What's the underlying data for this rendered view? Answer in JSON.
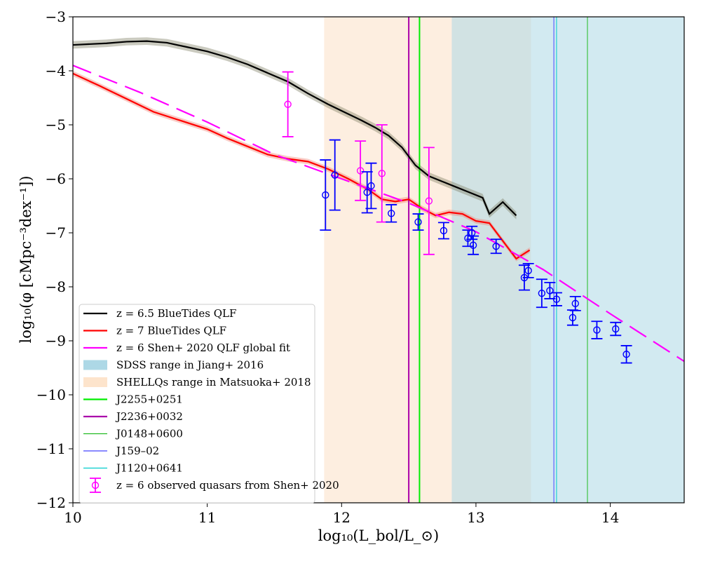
{
  "chart_data": {
    "type": "line",
    "xlabel": "log₁₀(L_bol/L_⊙)",
    "ylabel": "log₁₀(φ [cMpc⁻³dex⁻¹])",
    "xlim": [
      10,
      14.55
    ],
    "ylim": [
      -12,
      -3
    ],
    "xticks": [
      10,
      11,
      12,
      13,
      14
    ],
    "yticks": [
      -12,
      -11,
      -10,
      -9,
      -8,
      -7,
      -6,
      -5,
      -4,
      -3
    ],
    "legend_location": "lower-left",
    "shaded_regions": [
      {
        "name": "SHELLQs range in Matsuoka+ 2018",
        "x_start": 11.87,
        "x_end": 13.41,
        "color": "#f8cfa6",
        "opacity": 0.35
      },
      {
        "name": "SDSS range in Jiang+ 2016",
        "x_start": 12.82,
        "x_end": 14.55,
        "color": "#add8e6",
        "opacity": 0.55
      }
    ],
    "vertical_lines": [
      {
        "name": "J2255+0251",
        "x": 12.58,
        "color": "#00ee00",
        "width": 2
      },
      {
        "name": "J2236+0032",
        "x": 12.5,
        "color": "#aa00aa",
        "width": 2
      },
      {
        "name": "J0148+0600",
        "x": 13.83,
        "color": "#22bb22",
        "width": 1
      },
      {
        "name": "J159–02",
        "x": 13.58,
        "color": "#4444ff",
        "width": 1
      },
      {
        "name": "J1120+0641",
        "x": 13.6,
        "color": "#00cccc",
        "width": 1
      }
    ],
    "series": [
      {
        "name": "z = 6.5 BlueTides QLF",
        "color": "#000000",
        "band_color": "#7a7a60",
        "x": [
          10.0,
          10.25,
          10.4,
          10.55,
          10.7,
          10.85,
          11.0,
          11.15,
          11.3,
          11.45,
          11.6,
          11.75,
          11.9,
          12.05,
          12.15,
          12.25,
          12.35,
          12.45,
          12.55,
          12.65,
          12.75,
          12.85,
          12.95,
          13.05,
          13.1,
          13.2,
          13.3
        ],
        "y": [
          -3.52,
          -3.49,
          -3.46,
          -3.45,
          -3.48,
          -3.56,
          -3.64,
          -3.75,
          -3.88,
          -4.04,
          -4.2,
          -4.42,
          -4.62,
          -4.8,
          -4.92,
          -5.05,
          -5.2,
          -5.42,
          -5.75,
          -5.95,
          -6.05,
          -6.15,
          -6.25,
          -6.35,
          -6.65,
          -6.43,
          -6.68
        ],
        "band": 0.07
      },
      {
        "name": "z = 7 BlueTides QLF",
        "color": "#ff0000",
        "band_color": "#f08070",
        "x": [
          10.0,
          10.2,
          10.4,
          10.6,
          10.8,
          11.0,
          11.15,
          11.3,
          11.45,
          11.6,
          11.75,
          11.9,
          12.05,
          12.2,
          12.3,
          12.4,
          12.5,
          12.6,
          12.7,
          12.8,
          12.9,
          13.0,
          13.1,
          13.2,
          13.3,
          13.4
        ],
        "y": [
          -4.05,
          -4.28,
          -4.52,
          -4.76,
          -4.92,
          -5.08,
          -5.25,
          -5.4,
          -5.55,
          -5.63,
          -5.68,
          -5.82,
          -6.0,
          -6.2,
          -6.38,
          -6.42,
          -6.38,
          -6.55,
          -6.68,
          -6.62,
          -6.65,
          -6.78,
          -6.82,
          -7.15,
          -7.48,
          -7.32
        ],
        "band": 0.05
      },
      {
        "name": "z = 6 Shen+ 2020 QLF global fit",
        "color": "#ff00ff",
        "dashed": true,
        "x": [
          10.0,
          10.5,
          11.0,
          11.5,
          12.0,
          12.5,
          13.0,
          13.5,
          14.0,
          14.55
        ],
        "y": [
          -3.9,
          -4.4,
          -4.95,
          -5.55,
          -6.0,
          -6.45,
          -6.98,
          -7.68,
          -8.5,
          -9.38
        ]
      }
    ],
    "observed": {
      "name": "z = 6 observed quasars from Shen+ 2020",
      "points": [
        {
          "x": 11.6,
          "y": -4.62,
          "err": 0.6,
          "color": "#ff00ff"
        },
        {
          "x": 12.14,
          "y": -5.85,
          "err": 0.55,
          "color": "#ff00ff"
        },
        {
          "x": 12.3,
          "y": -5.9,
          "err": 0.9,
          "color": "#ff00ff"
        },
        {
          "x": 12.65,
          "y": -6.41,
          "err": 0.99,
          "color": "#ff00ff"
        },
        {
          "x": 11.88,
          "y": -6.3,
          "err": 0.65,
          "color": "#0000ff"
        },
        {
          "x": 11.95,
          "y": -5.93,
          "err": 0.65,
          "color": "#0000ff"
        },
        {
          "x": 12.19,
          "y": -6.25,
          "err": 0.38,
          "color": "#0000ff"
        },
        {
          "x": 12.22,
          "y": -6.13,
          "err": 0.42,
          "color": "#0000ff"
        },
        {
          "x": 12.37,
          "y": -6.64,
          "err": 0.16,
          "color": "#0000ff"
        },
        {
          "x": 12.57,
          "y": -6.8,
          "err": 0.15,
          "color": "#0000ff"
        },
        {
          "x": 12.76,
          "y": -6.96,
          "err": 0.15,
          "color": "#0000ff"
        },
        {
          "x": 12.94,
          "y": -7.1,
          "err": 0.15,
          "color": "#0000ff"
        },
        {
          "x": 12.97,
          "y": -7.0,
          "err": 0.12,
          "color": "#0000ff"
        },
        {
          "x": 12.98,
          "y": -7.23,
          "err": 0.17,
          "color": "#0000ff"
        },
        {
          "x": 13.15,
          "y": -7.25,
          "err": 0.13,
          "color": "#0000ff"
        },
        {
          "x": 13.36,
          "y": -7.83,
          "err": 0.23,
          "color": "#0000ff"
        },
        {
          "x": 13.39,
          "y": -7.7,
          "err": 0.13,
          "color": "#0000ff"
        },
        {
          "x": 13.49,
          "y": -8.12,
          "err": 0.26,
          "color": "#0000ff"
        },
        {
          "x": 13.55,
          "y": -8.07,
          "err": 0.15,
          "color": "#0000ff"
        },
        {
          "x": 13.6,
          "y": -8.23,
          "err": 0.12,
          "color": "#0000ff"
        },
        {
          "x": 13.72,
          "y": -8.57,
          "err": 0.14,
          "color": "#0000ff"
        },
        {
          "x": 13.74,
          "y": -8.31,
          "err": 0.13,
          "color": "#0000ff"
        },
        {
          "x": 13.9,
          "y": -8.8,
          "err": 0.16,
          "color": "#0000ff"
        },
        {
          "x": 14.04,
          "y": -8.78,
          "err": 0.12,
          "color": "#0000ff"
        },
        {
          "x": 14.12,
          "y": -9.25,
          "err": 0.16,
          "color": "#0000ff"
        }
      ]
    },
    "legend": [
      {
        "label": "z = 6.5 BlueTides QLF",
        "kind": "line",
        "color": "#000000"
      },
      {
        "label": "z = 7 BlueTides QLF",
        "kind": "line",
        "color": "#ff0000"
      },
      {
        "label": "z = 6 Shen+ 2020 QLF global fit",
        "kind": "line",
        "color": "#ff00ff"
      },
      {
        "label": "SDSS range in Jiang+ 2016",
        "kind": "patch",
        "color": "#add8e6"
      },
      {
        "label": "SHELLQs range in Matsuoka+ 2018",
        "kind": "patch",
        "color": "#fde4cc"
      },
      {
        "label": "J2255+0251",
        "kind": "line",
        "color": "#00ee00"
      },
      {
        "label": "J2236+0032",
        "kind": "line",
        "color": "#aa00aa"
      },
      {
        "label": "J0148+0600",
        "kind": "thinline",
        "color": "#22bb22"
      },
      {
        "label": "J159–02",
        "kind": "thinline",
        "color": "#4444ff"
      },
      {
        "label": "J1120+0641",
        "kind": "thinline",
        "color": "#00cccc"
      },
      {
        "label": "z = 6 observed quasars from Shen+ 2020",
        "kind": "errorbar",
        "color": "#ff00ff"
      }
    ]
  }
}
